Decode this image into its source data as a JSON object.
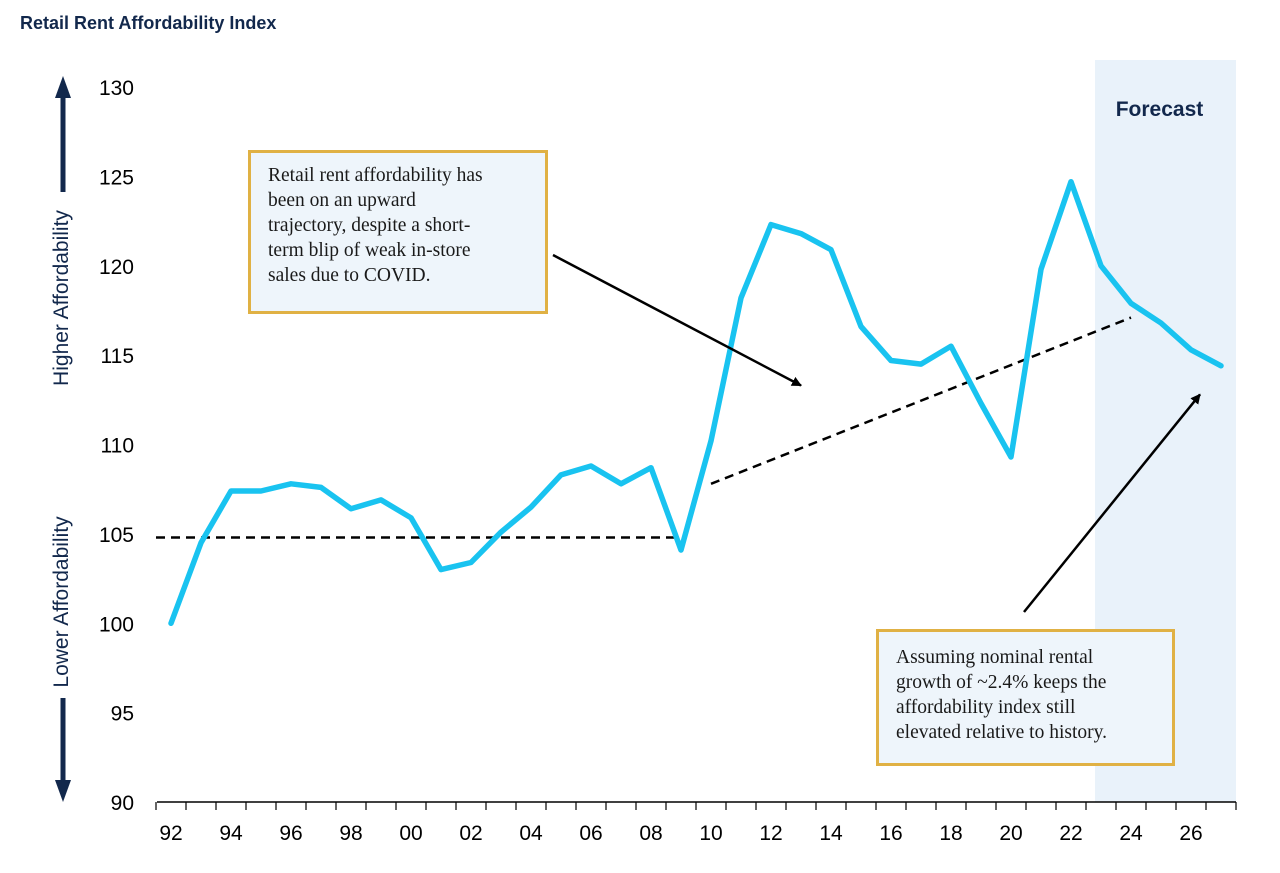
{
  "chart_data": {
    "type": "line",
    "title": "Retail Rent Affordability Index",
    "ylim": [
      90,
      130
    ],
    "yticks": [
      90,
      95,
      100,
      105,
      110,
      115,
      120,
      125,
      130
    ],
    "xtick_labels": [
      "92",
      "94",
      "96",
      "98",
      "00",
      "02",
      "04",
      "06",
      "08",
      "10",
      "12",
      "14",
      "16",
      "18",
      "20",
      "22",
      "24",
      "26"
    ],
    "x": [
      1992,
      1993,
      1994,
      1995,
      1996,
      1997,
      1998,
      1999,
      2000,
      2001,
      2002,
      2003,
      2004,
      2005,
      2006,
      2007,
      2008,
      2009,
      2010,
      2011,
      2012,
      2013,
      2014,
      2015,
      2016,
      2017,
      2018,
      2019,
      2020,
      2021,
      2022,
      2023,
      2024,
      2025,
      2026,
      2027
    ],
    "series": [
      {
        "name": "",
        "color": "#19c3f0",
        "values": [
          100.0,
          104.5,
          107.4,
          107.4,
          107.8,
          107.6,
          106.4,
          106.9,
          105.9,
          103.0,
          103.4,
          105.1,
          106.5,
          108.3,
          108.8,
          107.8,
          108.7,
          104.1,
          110.2,
          118.2,
          122.3,
          121.8,
          120.9,
          116.6,
          114.7,
          114.5,
          115.5,
          112.3,
          109.3,
          119.8,
          124.7,
          120.0,
          117.9,
          116.8,
          115.3,
          114.4
        ]
      }
    ],
    "trend_lines": [
      {
        "style": "dashed",
        "x": [
          1991.5,
          2009
        ],
        "y": [
          104.8,
          104.8
        ]
      },
      {
        "style": "dashed",
        "x": [
          2010,
          2024
        ],
        "y": [
          107.8,
          117.1
        ]
      }
    ],
    "forecast_region": {
      "label": "Forecast",
      "x_start": 2022.8,
      "x_end": 2027.5,
      "color": "#e9f2fa"
    },
    "y_direction_labels": {
      "upper": "Higher Affordability",
      "lower": "Lower Affordability"
    },
    "annotations": [
      {
        "lines": [
          "Retail rent affordability has",
          "been on an upward",
          "trajectory, despite a short-",
          "term blip of weak in-store",
          "sales due to COVID."
        ],
        "arrow_to": [
          2013,
          113.3
        ]
      },
      {
        "lines": [
          "Assuming nominal rental",
          "growth of ~2.4% keeps the",
          "affordability index still",
          "elevated relative to history."
        ],
        "arrow_to": [
          2026.3,
          112.8
        ]
      }
    ],
    "grid": false,
    "legend": "none"
  }
}
